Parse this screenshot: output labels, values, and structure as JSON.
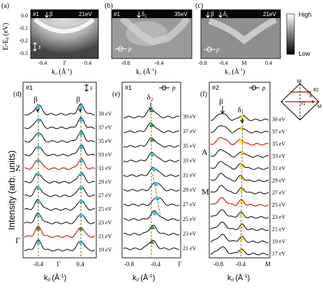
{
  "figure": {
    "common_ylabel": "Intensity (arb. units)",
    "top_ylabel": "E-E",
    "top_ylabel_sub": "F",
    "top_ylabel_unit": "(eV)",
    "colorbar": {
      "high": "High",
      "low": "Low"
    },
    "colors": {
      "cyan": "#37c9e6",
      "green": "#3f9b3f",
      "yellow": "#f0ea20",
      "red_curve": "#d9281f",
      "red_arrow": "#d62222"
    },
    "xlabel_k": "k",
    "xlabel_sub": "//",
    "xlabel_unit": "(Å",
    "xlabel_unit_sup": "-1",
    "xlabel_unit_end": ")"
  },
  "panels": {
    "a": {
      "tag": "(a)",
      "cut": "#1",
      "band": "β",
      "energy": "21eV",
      "pol": "s",
      "yticks": [
        "0.0",
        "-0.1",
        "-0.2",
        "-0.3"
      ],
      "xticks": [
        "-0.4",
        "Γ",
        "0.4"
      ]
    },
    "b": {
      "tag": "(b)",
      "cut": "#1",
      "band": "δ",
      "band_sub": "2",
      "energy": "35eV",
      "pol": "p",
      "xticks": [
        "-0.8",
        "-0.4"
      ]
    },
    "c": {
      "tag": "(c)",
      "band1": "β",
      "band2": "δ",
      "band2_sub": "1",
      "energy": "21eV",
      "pol": "p",
      "xticks": [
        "-0.8",
        "-0.4",
        "M",
        "0.4"
      ]
    },
    "d": {
      "tag": "(d)",
      "cut": "#1",
      "pol": "s",
      "band": "β",
      "energies": [
        "39 eV",
        "37 eV",
        "35 eV",
        "33 eV",
        "31 eV",
        "29 eV",
        "27 eV",
        "25 eV",
        "23 eV",
        "21 eV",
        "19 eV"
      ],
      "symbols": [
        "Z",
        "Γ"
      ],
      "xticks": [
        "-0.4",
        "Γ",
        "0.4"
      ]
    },
    "e": {
      "tag": "(e)",
      "cut": "#1",
      "pol": "p",
      "band": "δ",
      "band_sub": "2",
      "energies": [
        "39 eV",
        "37 eV",
        "35 eV",
        "33 eV",
        "31 eV",
        "29 eV",
        "27 eV",
        "25 eV",
        "23 eV",
        "21 eV"
      ],
      "xticks": [
        "-0.8",
        "-0.4",
        "Γ"
      ]
    },
    "f": {
      "tag": "(f)",
      "cut": "#2",
      "pol": "p",
      "band1": "β",
      "band2": "δ",
      "band2_sub": "1",
      "energies": [
        "39 eV",
        "37 eV",
        "35 eV",
        "33 eV",
        "31 eV",
        "29 eV",
        "27 eV",
        "25 eV",
        "23 eV",
        "21 eV",
        "19 eV",
        "17 eV"
      ],
      "symbols": [
        "A",
        "M"
      ],
      "xticks": [
        "-0.8",
        "-0.4",
        "M"
      ]
    },
    "bz": {
      "label_M_top": "M",
      "label_M_right": "M",
      "label_X": "X",
      "cut2": "#2",
      "cut1": "#1"
    }
  }
}
